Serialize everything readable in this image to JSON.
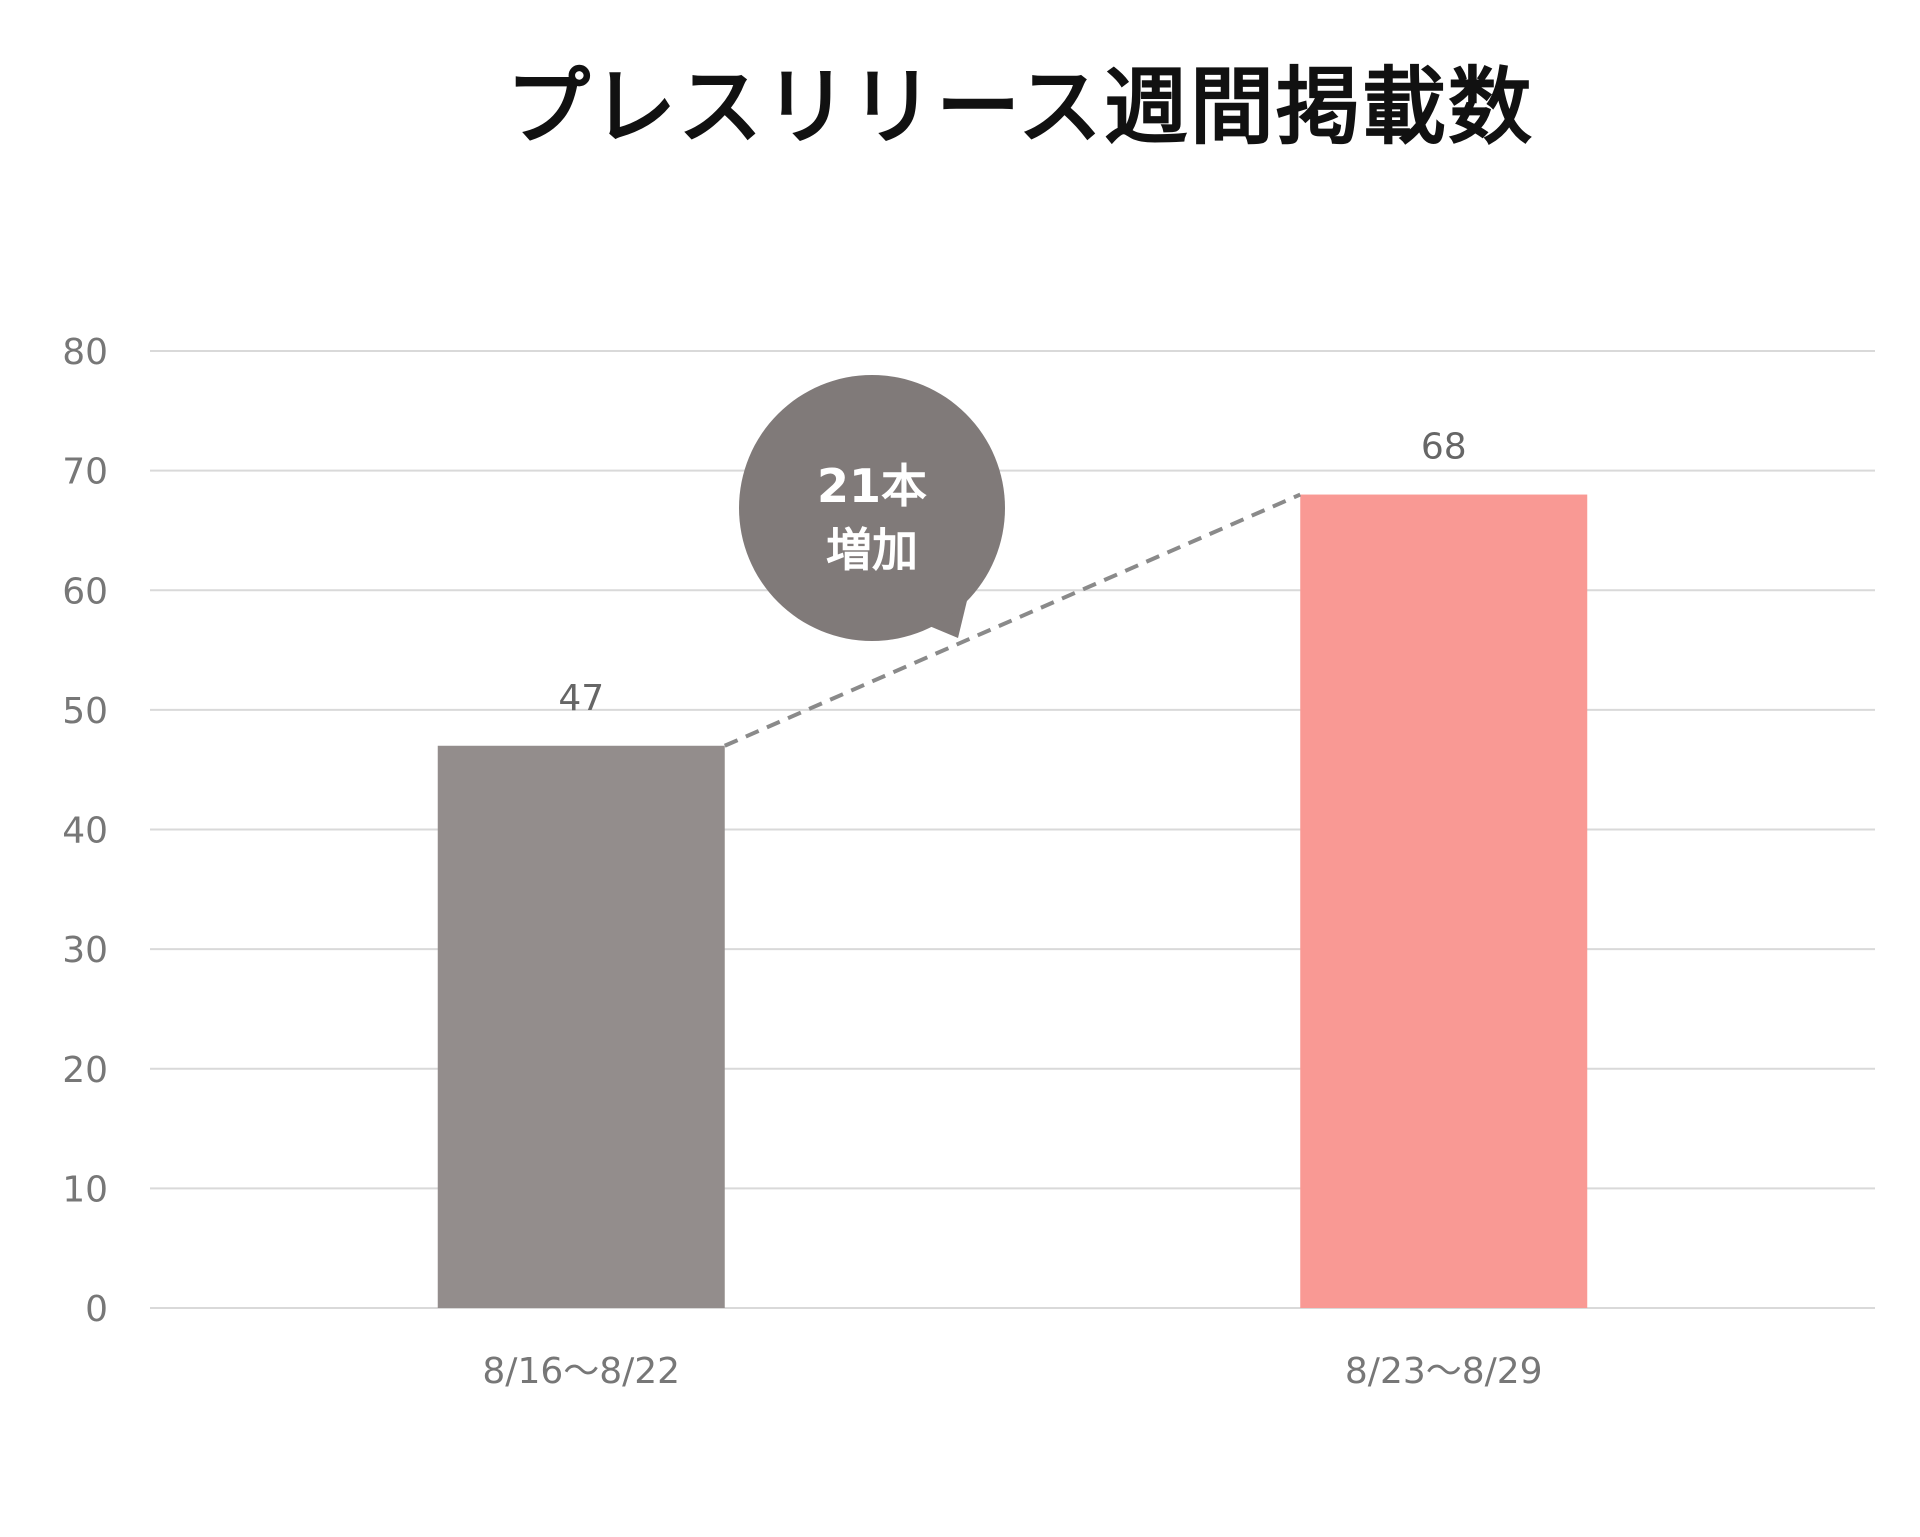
{
  "chart_data": {
    "type": "bar",
    "title": "プレスリリース週間掲載数",
    "categories": [
      "8/16〜8/22",
      "8/23〜8/29"
    ],
    "values": [
      47,
      68
    ],
    "value_labels": [
      "47",
      "68"
    ],
    "bar_colors": [
      "#938d8c",
      "#f99994"
    ],
    "ylim": [
      0,
      80
    ],
    "yticks": [
      "0",
      "10",
      "20",
      "30",
      "40",
      "50",
      "60",
      "70",
      "80"
    ],
    "grid": true,
    "xlabel": "",
    "ylabel": "",
    "annotation": {
      "line1": "21本",
      "line2": "増加",
      "bubble_color": "#807a79",
      "connector": "dashed line from top of first bar to top of second bar"
    }
  }
}
